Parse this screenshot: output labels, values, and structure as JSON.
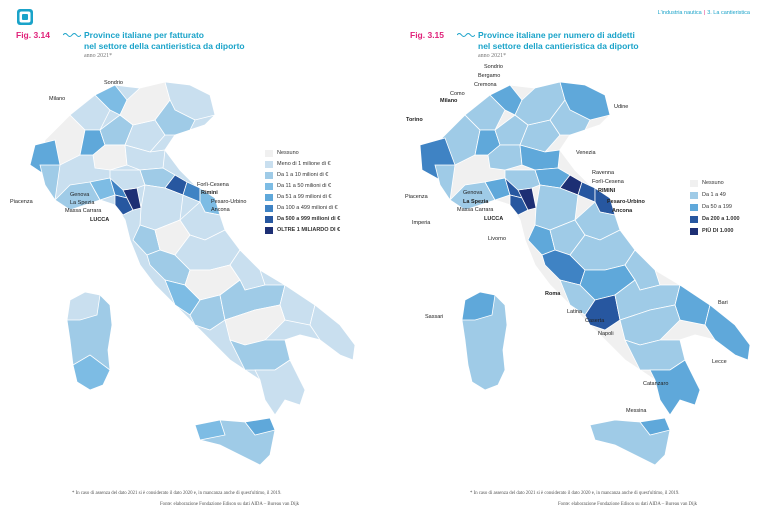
{
  "header": {
    "section_title": "L'industria nautica",
    "section_name": "3. La cantieristica"
  },
  "colors": {
    "none": "#f0f0f0",
    "c1": "#c9dfef",
    "c2": "#9fcbe7",
    "c3": "#7dbce4",
    "c4": "#5fa8da",
    "c5": "#3f83c4",
    "c6": "#2757a0",
    "c7": "#1d2f74",
    "accent_pink": "#e0227a",
    "accent_blue": "#1aa3c9"
  },
  "left": {
    "fig_label": "Fig. 3.14",
    "title_line1": "Province italiane per fatturato",
    "title_line2": "nel settore della cantieristica da diporto",
    "subtitle": "anno 2021*",
    "legend": [
      {
        "label": "Nessuno",
        "color": "#f0f0f0",
        "bold": false
      },
      {
        "label": "Meno di 1 milione di €",
        "color": "#c9dfef",
        "bold": false
      },
      {
        "label": "Da 1 a 10 milioni di €",
        "color": "#9fcbe7",
        "bold": false
      },
      {
        "label": "Da 11 a 50 milioni di €",
        "color": "#7dbce4",
        "bold": false
      },
      {
        "label": "Da 51 a 99 milioni di €",
        "color": "#5fa8da",
        "bold": false
      },
      {
        "label": "Da 100 a 499 milioni di €",
        "color": "#3f83c4",
        "bold": false
      },
      {
        "label": "Da 500 a 999 milioni di €",
        "color": "#2757a0",
        "bold": true
      },
      {
        "label": "OLTRE 1 MILIARDO DI €",
        "color": "#1d2f74",
        "bold": true
      }
    ],
    "labels": [
      {
        "text": "Sondrio",
        "bold": false
      },
      {
        "text": "Milano",
        "bold": false
      },
      {
        "text": "Piacenza",
        "bold": false
      },
      {
        "text": "Genova",
        "bold": false
      },
      {
        "text": "La Spezia",
        "bold": false
      },
      {
        "text": "Massa Carrara",
        "bold": false
      },
      {
        "text": "LUCCA",
        "bold": true
      },
      {
        "text": "Forlì-Cesena",
        "bold": false
      },
      {
        "text": "Rimini",
        "bold": true
      },
      {
        "text": "Pesaro-Urbino",
        "bold": false
      },
      {
        "text": "Ancona",
        "bold": false
      }
    ],
    "footnote": "* In caso di assenza del dato 2021 si è considerato il dato 2020 e, in mancanza anche di quest'ultimo, il 2019.",
    "source": "Fonte: elaborazione Fondazione Edison su dati AIDA – Bureau van Dijk"
  },
  "right": {
    "fig_label": "Fig. 3.15",
    "title_line1": "Province italiane per numero di addetti",
    "title_line2": "nel settore della cantieristica da diporto",
    "subtitle": "anno 2021*",
    "legend": [
      {
        "label": "Nessuno",
        "color": "#f0f0f0",
        "bold": false
      },
      {
        "label": "Da 1 a 49",
        "color": "#9fcbe7",
        "bold": false
      },
      {
        "label": "Da 50 a 199",
        "color": "#5fa8da",
        "bold": false
      },
      {
        "label": "Da 200 a 1.000",
        "color": "#2757a0",
        "bold": true
      },
      {
        "label": "PIÙ DI 1.000",
        "color": "#1d2f74",
        "bold": true
      }
    ],
    "labels": [
      {
        "text": "Sondrio",
        "bold": false
      },
      {
        "text": "Bergamo",
        "bold": false
      },
      {
        "text": "Cremona",
        "bold": false
      },
      {
        "text": "Como",
        "bold": false
      },
      {
        "text": "Milano",
        "bold": true
      },
      {
        "text": "Udine",
        "bold": false
      },
      {
        "text": "Torino",
        "bold": true
      },
      {
        "text": "Venezia",
        "bold": false
      },
      {
        "text": "Ravenna",
        "bold": false
      },
      {
        "text": "Forlì-Cesena",
        "bold": false
      },
      {
        "text": "RIMINI",
        "bold": true
      },
      {
        "text": "Pesaro-Urbino",
        "bold": true
      },
      {
        "text": "Ancona",
        "bold": true
      },
      {
        "text": "Piacenza",
        "bold": false
      },
      {
        "text": "Genova",
        "bold": false
      },
      {
        "text": "La Spezia",
        "bold": true
      },
      {
        "text": "Massa Carrara",
        "bold": false
      },
      {
        "text": "LUCCA",
        "bold": true
      },
      {
        "text": "Imperia",
        "bold": false
      },
      {
        "text": "Livorno",
        "bold": false
      },
      {
        "text": "Roma",
        "bold": true
      },
      {
        "text": "Latina",
        "bold": false
      },
      {
        "text": "Caserta",
        "bold": false
      },
      {
        "text": "Napoli",
        "bold": false
      },
      {
        "text": "Bari",
        "bold": false
      },
      {
        "text": "Lecce",
        "bold": false
      },
      {
        "text": "Catanzaro",
        "bold": false
      },
      {
        "text": "Messina",
        "bold": false
      },
      {
        "text": "Sassari",
        "bold": false
      }
    ],
    "footnote": "* In caso di assenza del dato 2021 si è considerato il dato 2020 e, in mancanza anche di quest'ultimo, il 2019.",
    "source": "Fonte: elaborazione Fondazione Edison su dati AIDA – Bureau van Dijk"
  }
}
